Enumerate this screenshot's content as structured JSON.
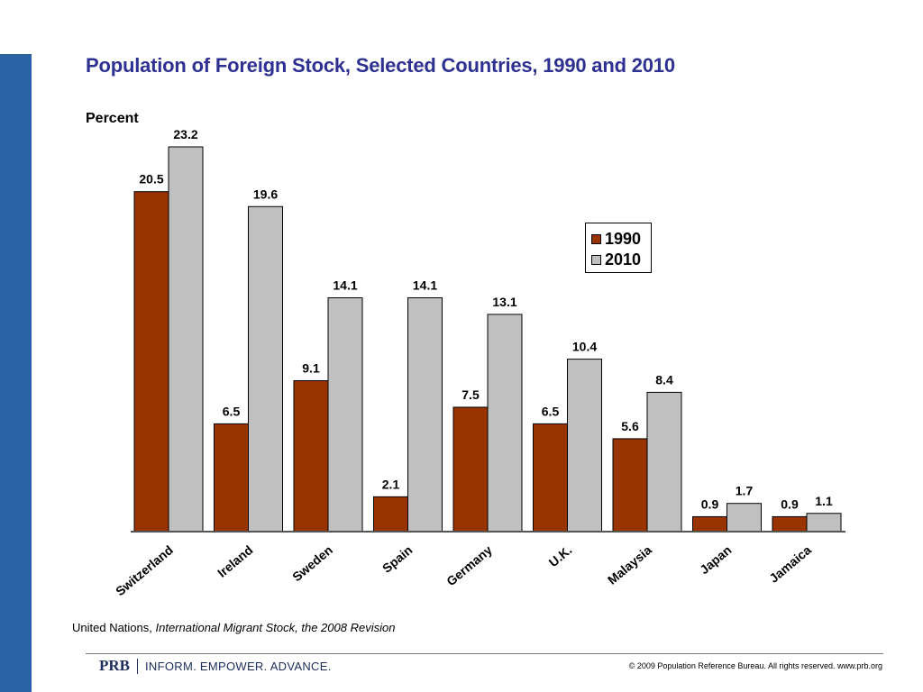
{
  "title": "Population of Foreign Stock, Selected Countries, 1990 and 2010",
  "source": {
    "prefix": "United Nations, ",
    "title": "International Migrant Stock, the 2008 Revision"
  },
  "footer": {
    "brand": "PRB",
    "tagline": "INFORM. EMPOWER. ADVANCE.",
    "copyright": "© 2009 Population Reference Bureau. All rights reserved. www.prb.org"
  },
  "colors": {
    "series_1990": "#993300",
    "series_2010": "#c0c0c0",
    "title": "#2e3192",
    "side_bar": "#2a62a6"
  },
  "chart_data": {
    "type": "bar",
    "title": "Population of Foreign Stock, Selected Countries, 1990 and 2010",
    "xlabel": "",
    "ylabel": "Percent",
    "ylim": [
      0,
      24
    ],
    "grid": false,
    "legend_position": "right",
    "categories": [
      "Switzerland",
      "Ireland",
      "Sweden",
      "Spain",
      "Germany",
      "U.K.",
      "Malaysia",
      "Japan",
      "Jamaica"
    ],
    "series": [
      {
        "name": "1990",
        "values": [
          20.5,
          6.5,
          9.1,
          2.1,
          7.5,
          6.5,
          5.6,
          0.9,
          0.9
        ]
      },
      {
        "name": "2010",
        "values": [
          23.2,
          19.6,
          14.1,
          14.1,
          13.1,
          10.4,
          8.4,
          1.7,
          1.1
        ]
      }
    ]
  }
}
